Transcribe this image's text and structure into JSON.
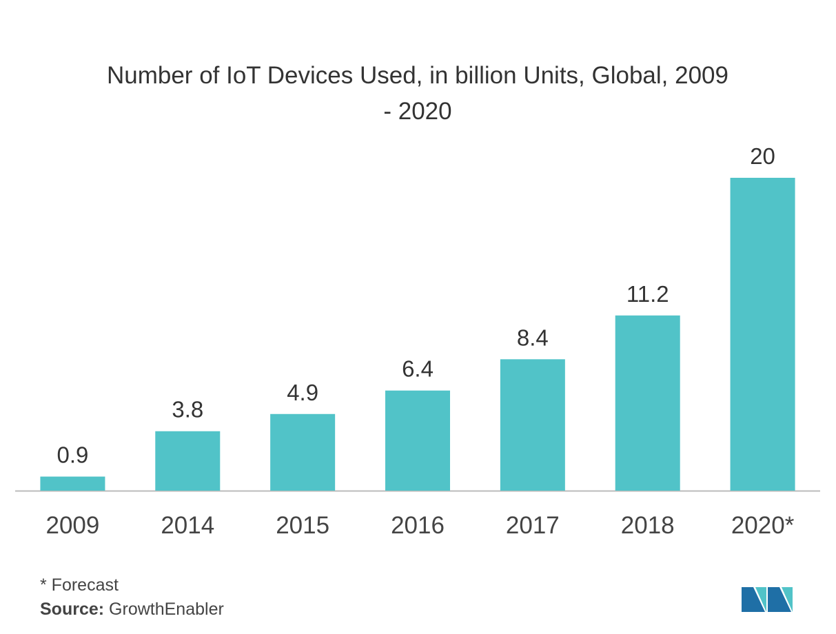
{
  "chart_data": {
    "type": "bar",
    "title": "Number of IoT Devices Used, in billion Units, Global, 2009 - 2020",
    "categories": [
      "2009",
      "2014",
      "2015",
      "2016",
      "2017",
      "2018",
      "2020*"
    ],
    "values": [
      0.9,
      3.8,
      4.9,
      6.4,
      8.4,
      11.2,
      20
    ],
    "color": "#51c3c8",
    "footnote": "* Forecast",
    "source_label": "Source:",
    "source": "GrowthEnabler"
  }
}
